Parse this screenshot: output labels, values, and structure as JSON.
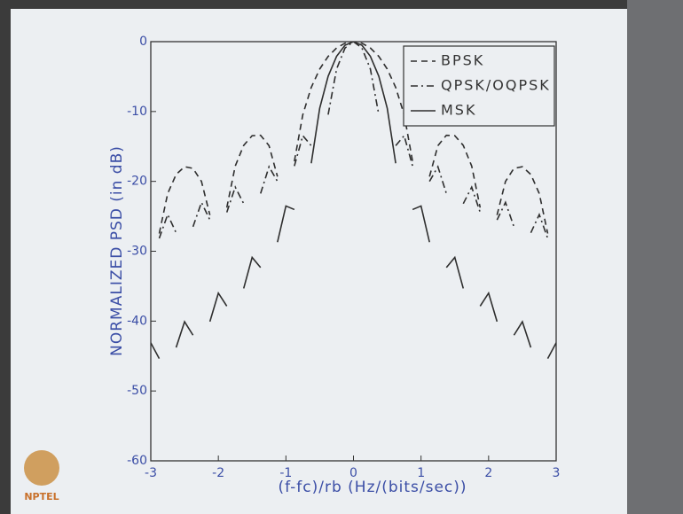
{
  "chart_data": {
    "type": "line",
    "xlabel": "(f-fc)/rb (Hz/(bits/sec))",
    "ylabel": "NORMALIZED PSD (in dB)",
    "x": [
      -3,
      -2.875,
      -2.75,
      -2.625,
      -2.5,
      -2.375,
      -2.25,
      -2.125,
      -2,
      -1.875,
      -1.75,
      -1.625,
      -1.5,
      -1.375,
      -1.25,
      -1.125,
      -1,
      -0.875,
      -0.75,
      -0.625,
      -0.5,
      -0.375,
      -0.25,
      -0.125,
      0,
      0.125,
      0.25,
      0.375,
      0.5,
      0.625,
      0.75,
      0.875,
      1,
      1.125,
      1.25,
      1.375,
      1.5,
      1.625,
      1.75,
      1.875,
      2,
      2.125,
      2.25,
      2.375,
      2.5,
      2.625,
      2.75,
      2.875,
      3
    ],
    "series": [
      {
        "name": "BPSK",
        "color": "#2e2e2e",
        "dash": "dashed",
        "values": [
          null,
          -27.46,
          -21.74,
          -19.01,
          -17.9,
          -18.14,
          -20,
          -24.83,
          null,
          -23.75,
          -17.81,
          -14.85,
          -13.46,
          -13.4,
          -14.89,
          -19.31,
          null,
          -17.13,
          -10.45,
          -6.55,
          -3.92,
          -2.11,
          -0.91,
          -0.22,
          0,
          -0.22,
          -0.91,
          -2.11,
          -3.92,
          -6.55,
          -10.45,
          -17.13,
          null,
          -19.31,
          -14.89,
          -13.4,
          -13.46,
          -14.85,
          -17.81,
          -23.75,
          null,
          -24.83,
          -20,
          -18.14,
          -17.9,
          -19.01,
          -21.74,
          -27.46,
          null
        ]
      },
      {
        "name": "QPSK/OQPSK",
        "color": "#2e2e2e",
        "dash": "dashdot",
        "values": [
          null,
          -28.15,
          -24.75,
          -27.36,
          null,
          -26.49,
          -23.01,
          -25.52,
          null,
          -24.43,
          -20.82,
          -23.19,
          null,
          -21.74,
          -17.9,
          -20,
          null,
          -17.81,
          -13.46,
          -14.89,
          null,
          -10.45,
          -3.92,
          -0.91,
          0,
          -0.91,
          -3.92,
          -10.45,
          null,
          -14.89,
          -13.46,
          -17.81,
          null,
          -20,
          -17.9,
          -21.74,
          null,
          -23.19,
          -20.82,
          -24.43,
          null,
          -25.52,
          -23.01,
          -26.49,
          null,
          -27.36,
          -24.75,
          -28.15,
          null
        ]
      },
      {
        "name": "MSK",
        "color": "#2e2e2e",
        "dash": "solid",
        "values": [
          -43.11,
          -45.37,
          null,
          -43.78,
          -40.09,
          -42.02,
          null,
          -40.07,
          -35.99,
          -37.86,
          null,
          -35.32,
          -30.88,
          -32.33,
          null,
          -28.7,
          -23.52,
          -24.03,
          null,
          -17.41,
          -9.54,
          -4.95,
          -2.1,
          -0.51,
          0,
          -0.51,
          -2.1,
          -4.95,
          -9.54,
          -17.41,
          null,
          -24.03,
          -23.52,
          -28.7,
          null,
          -32.33,
          -30.88,
          -35.32,
          null,
          -37.86,
          -35.99,
          -40.07,
          null,
          -42.02,
          -40.09,
          -43.78,
          null,
          -45.37,
          -43.11
        ]
      }
    ],
    "xlim": [
      -3,
      3
    ],
    "ylim": [
      -60,
      0
    ],
    "xticks": [
      -3,
      -2,
      -1,
      0,
      1,
      2,
      3
    ],
    "yticks": [
      0,
      -10,
      -20,
      -30,
      -40,
      -50,
      -60
    ],
    "legend": "upper right"
  },
  "logo": "NPTEL"
}
